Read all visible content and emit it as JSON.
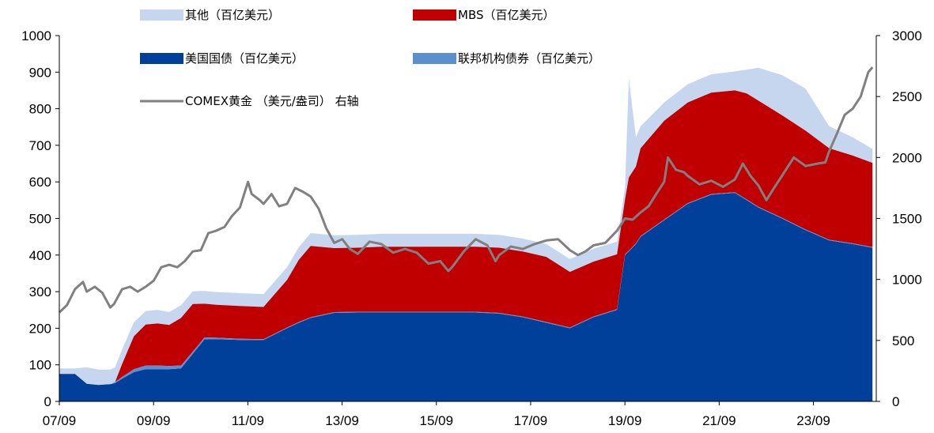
{
  "chart_data": {
    "type": "area",
    "xlabel": "",
    "ylabel_left": "",
    "ylabel_right": "",
    "x_tick_labels": [
      "07/09",
      "09/09",
      "11/09",
      "13/09",
      "15/09",
      "17/09",
      "19/09",
      "21/09",
      "23/09"
    ],
    "x_range": [
      2007.667,
      2025.0
    ],
    "ylim_left": [
      0,
      1000
    ],
    "ylim_right": [
      0,
      3000
    ],
    "y_ticks_left": [
      0,
      100,
      200,
      300,
      400,
      500,
      600,
      700,
      800,
      900,
      1000
    ],
    "y_ticks_right": [
      0,
      500,
      1000,
      1500,
      2000,
      2500,
      3000
    ],
    "grid": false,
    "legend_placement": "top",
    "x": [
      2007.67,
      2008.0,
      2008.25,
      2008.5,
      2008.75,
      2008.85,
      2009.0,
      2009.25,
      2009.5,
      2009.75,
      2010.0,
      2010.25,
      2010.5,
      2010.75,
      2011.0,
      2011.5,
      2012.0,
      2012.5,
      2012.75,
      2013.0,
      2013.5,
      2014.0,
      2014.5,
      2015.0,
      2015.5,
      2016.0,
      2016.5,
      2017.0,
      2017.5,
      2018.0,
      2018.5,
      2019.0,
      2019.5,
      2019.67,
      2019.75,
      2019.9,
      2020.0,
      2020.5,
      2021.0,
      2021.5,
      2022.0,
      2022.25,
      2022.5,
      2023.0,
      2023.5,
      2024.0,
      2024.5,
      2024.92
    ],
    "series": [
      {
        "name": "美国国债（百亿美元）",
        "axis": "left",
        "color": "#003f9a",
        "values": [
          75,
          75,
          48,
          45,
          47,
          50,
          62,
          80,
          88,
          88,
          88,
          90,
          130,
          170,
          170,
          168,
          168,
          200,
          215,
          228,
          242,
          243,
          243,
          243,
          243,
          243,
          243,
          240,
          230,
          215,
          200,
          230,
          250,
          400,
          410,
          430,
          450,
          495,
          540,
          565,
          570,
          550,
          530,
          500,
          468,
          440,
          430,
          420
        ]
      },
      {
        "name": "联邦机构债券（百亿美元）",
        "axis": "left",
        "color": "#5b8fd0",
        "values": [
          0,
          0,
          0,
          0,
          0,
          3,
          5,
          8,
          10,
          10,
          9,
          8,
          6,
          5,
          4,
          3,
          2,
          2,
          2,
          2,
          2,
          2,
          2,
          2,
          2,
          2,
          2,
          2,
          2,
          2,
          2,
          2,
          2,
          2,
          2,
          2,
          2,
          2,
          2,
          2,
          2,
          2,
          2,
          2,
          2,
          2,
          2,
          2
        ]
      },
      {
        "name": "MBS（百亿美元）",
        "axis": "left",
        "color": "#c00000",
        "values": [
          0,
          0,
          0,
          0,
          0,
          0,
          35,
          90,
          112,
          115,
          112,
          130,
          130,
          92,
          90,
          90,
          88,
          130,
          170,
          195,
          175,
          175,
          178,
          178,
          178,
          178,
          178,
          178,
          178,
          178,
          152,
          150,
          150,
          150,
          200,
          210,
          240,
          270,
          275,
          277,
          278,
          290,
          290,
          280,
          270,
          250,
          240,
          230
        ]
      },
      {
        "name": "其他（百亿美元）",
        "axis": "left",
        "color": "#c5d6ee",
        "values": [
          15,
          15,
          45,
          42,
          40,
          40,
          40,
          38,
          37,
          37,
          35,
          35,
          35,
          35,
          35,
          35,
          35,
          35,
          35,
          35,
          35,
          35,
          35,
          35,
          35,
          35,
          35,
          35,
          35,
          35,
          35,
          35,
          35,
          35,
          270,
          80,
          60,
          50,
          50,
          50,
          52,
          65,
          90,
          110,
          115,
          60,
          50,
          38
        ]
      },
      {
        "name": "COMEX黄金 （美元/盎司） 右轴",
        "axis": "right",
        "color": "#808080",
        "x": [
          2007.67,
          2007.83,
          2008.0,
          2008.17,
          2008.25,
          2008.42,
          2008.58,
          2008.75,
          2008.83,
          2009.0,
          2009.17,
          2009.33,
          2009.5,
          2009.67,
          2009.83,
          2010.0,
          2010.17,
          2010.33,
          2010.5,
          2010.67,
          2010.83,
          2011.0,
          2011.17,
          2011.33,
          2011.5,
          2011.67,
          2011.75,
          2011.92,
          2012.0,
          2012.17,
          2012.33,
          2012.5,
          2012.67,
          2012.83,
          2013.0,
          2013.17,
          2013.33,
          2013.5,
          2013.67,
          2013.83,
          2014.0,
          2014.25,
          2014.5,
          2014.75,
          2015.0,
          2015.25,
          2015.5,
          2015.75,
          2015.92,
          2016.0,
          2016.25,
          2016.5,
          2016.75,
          2016.92,
          2017.0,
          2017.25,
          2017.5,
          2017.75,
          2018.0,
          2018.25,
          2018.5,
          2018.67,
          2018.83,
          2019.0,
          2019.25,
          2019.5,
          2019.67,
          2019.83,
          2020.0,
          2020.17,
          2020.33,
          2020.5,
          2020.58,
          2020.75,
          2020.92,
          2021.0,
          2021.25,
          2021.5,
          2021.75,
          2022.0,
          2022.17,
          2022.33,
          2022.5,
          2022.67,
          2022.83,
          2023.0,
          2023.25,
          2023.5,
          2023.75,
          2023.92,
          2024.0,
          2024.17,
          2024.33,
          2024.5,
          2024.67,
          2024.75,
          2024.83,
          2024.92
        ],
        "values": [
          730,
          790,
          920,
          980,
          900,
          940,
          890,
          770,
          800,
          920,
          940,
          900,
          940,
          990,
          1100,
          1120,
          1100,
          1150,
          1230,
          1240,
          1380,
          1400,
          1430,
          1520,
          1590,
          1800,
          1700,
          1650,
          1620,
          1700,
          1600,
          1620,
          1750,
          1720,
          1680,
          1580,
          1420,
          1300,
          1330,
          1250,
          1210,
          1310,
          1290,
          1220,
          1250,
          1220,
          1130,
          1150,
          1070,
          1100,
          1230,
          1330,
          1280,
          1150,
          1200,
          1270,
          1250,
          1290,
          1320,
          1330,
          1240,
          1200,
          1230,
          1280,
          1300,
          1400,
          1500,
          1490,
          1550,
          1600,
          1700,
          1800,
          2000,
          1900,
          1880,
          1850,
          1780,
          1810,
          1760,
          1820,
          1950,
          1850,
          1770,
          1650,
          1750,
          1850,
          2000,
          1930,
          1950,
          1960,
          2050,
          2200,
          2350,
          2400,
          2500,
          2600,
          2700,
          2740
        ]
      }
    ]
  }
}
